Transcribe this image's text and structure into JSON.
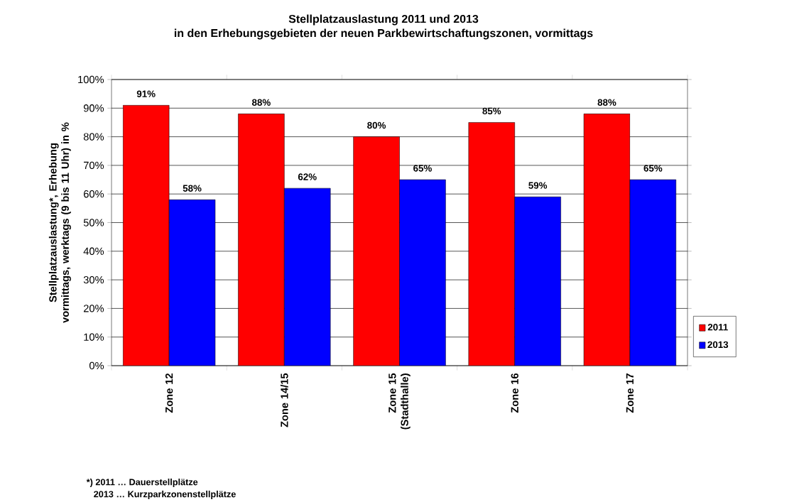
{
  "chart_data": {
    "type": "bar",
    "title": "Stellplatzauslastung 2011 und 2013\nin den Erhebungsgebieten der neuen Parkbewirtschaftungszonen, vormittags",
    "ylabel": "Stellplatzauslastung*, Erhebung vormittags, werktags (9 bis 11 Uhr) in %",
    "categories": [
      "Zone 12",
      "Zone 14/15",
      "Zone 15 (Stadthalle)",
      "Zone 16",
      "Zone 17"
    ],
    "series": [
      {
        "name": "2011",
        "color": "#ff0000",
        "values": [
          91,
          88,
          80,
          85,
          88
        ],
        "value_labels": [
          "91%",
          "88%",
          "80%",
          "85%",
          "88%"
        ]
      },
      {
        "name": "2013",
        "color": "#0000ff",
        "values": [
          58,
          62,
          65,
          59,
          65
        ],
        "value_labels": [
          "58%",
          "62%",
          "65%",
          "59%",
          "65%"
        ]
      }
    ],
    "ylim": [
      0,
      100
    ],
    "yticks": [
      {
        "value": 0,
        "label": "0%"
      },
      {
        "value": 10,
        "label": "10%"
      },
      {
        "value": 20,
        "label": "20%"
      },
      {
        "value": 30,
        "label": "30%"
      },
      {
        "value": 40,
        "label": "40%"
      },
      {
        "value": 50,
        "label": "50%"
      },
      {
        "value": 60,
        "label": "60%"
      },
      {
        "value": 70,
        "label": "70%"
      },
      {
        "value": 80,
        "label": "80%"
      },
      {
        "value": 90,
        "label": "90%"
      },
      {
        "value": 100,
        "label": "100%"
      }
    ],
    "grid": "y",
    "legend": "right",
    "annotations": [
      "*) 2011 … Dauerstellplätze",
      "2013 … Kurzparkzonenstellplätze"
    ]
  }
}
